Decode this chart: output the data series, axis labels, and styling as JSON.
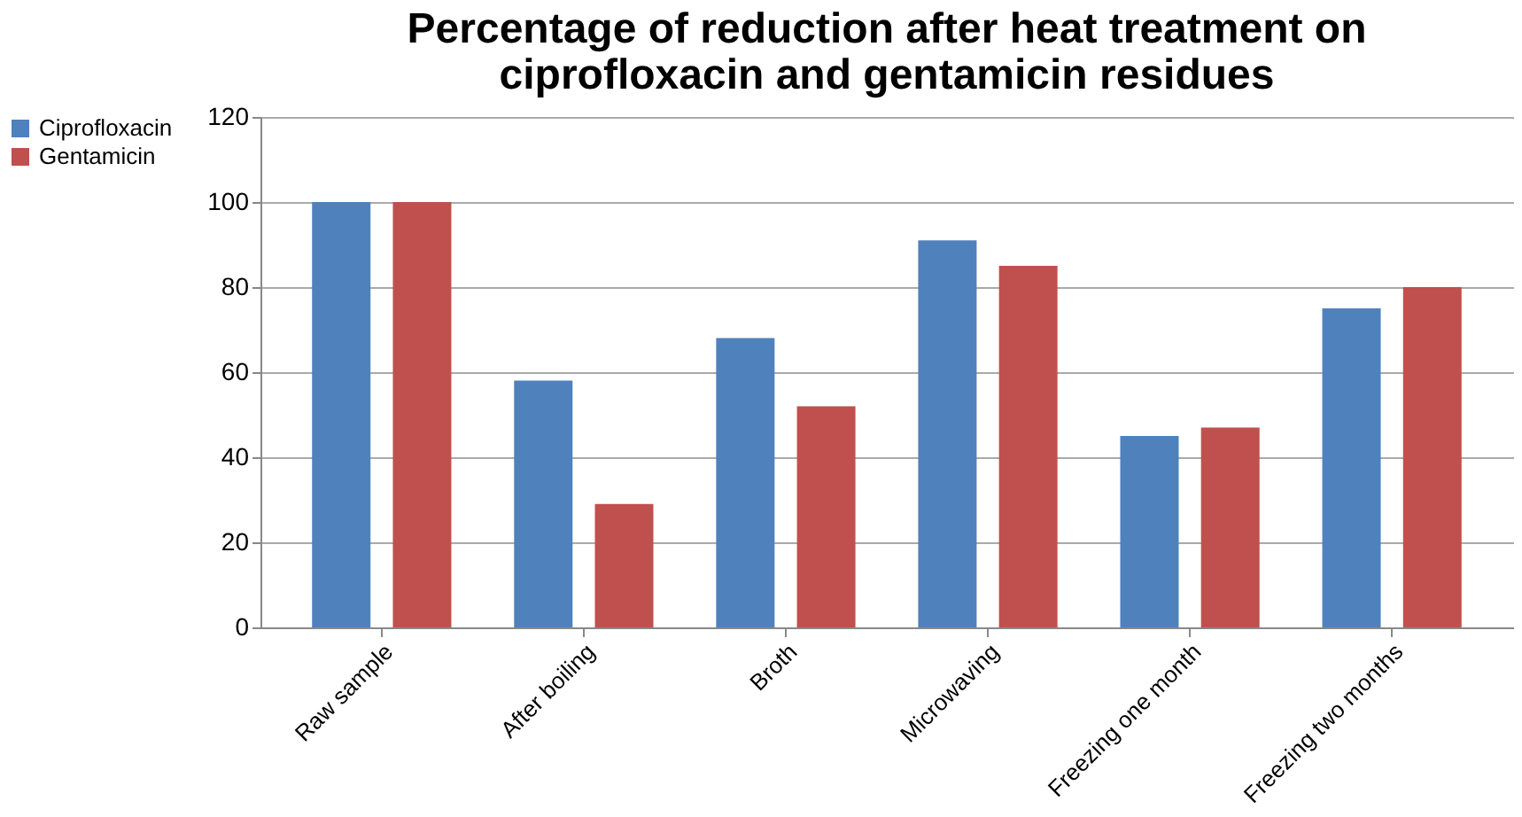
{
  "chart_data": {
    "type": "bar",
    "title": "Percentage of reduction after heat treatment on ciprofloxacin and gentamicin residues",
    "categories": [
      "Raw sample",
      "After boiling",
      "Broth",
      "Microwaving",
      "Freezing one month",
      "Freezing two months"
    ],
    "series": [
      {
        "name": "Ciprofloxacin",
        "color": "#4f81bd",
        "values": [
          100,
          58,
          68,
          91,
          45,
          75
        ]
      },
      {
        "name": "Gentamicin",
        "color": "#c0504d",
        "values": [
          100,
          29,
          52,
          85,
          47,
          80
        ]
      }
    ],
    "ylim": [
      0,
      120
    ],
    "yticks": [
      0,
      20,
      40,
      60,
      80,
      100,
      120
    ],
    "grid": "y",
    "legend": "left"
  }
}
